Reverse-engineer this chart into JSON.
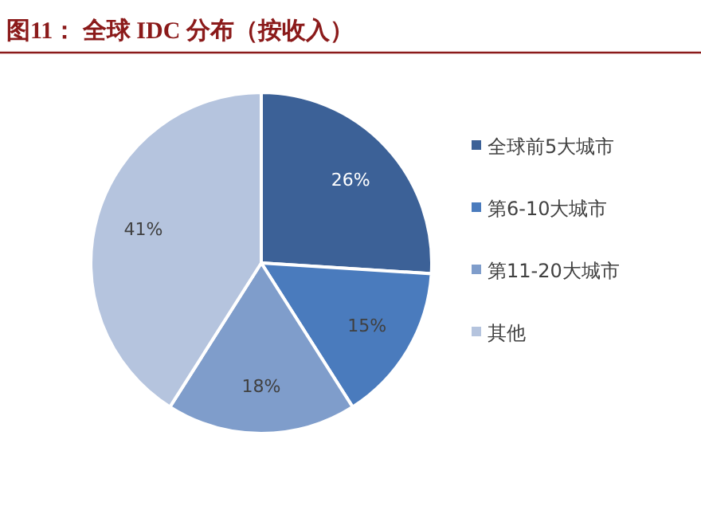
{
  "chart_data": {
    "type": "pie",
    "title": "图11：  全球 IDC 分布（按收入）",
    "categories": [
      "全球前5大城市",
      "第6-10大城市",
      "第11-20大城市",
      "其他"
    ],
    "values": [
      26,
      15,
      18,
      41
    ],
    "colors": [
      "#3c6197",
      "#4a7bbd",
      "#7f9dcb",
      "#b5c4de"
    ],
    "value_labels": [
      "26%",
      "15%",
      "18%",
      "41%"
    ],
    "legend": "right"
  }
}
